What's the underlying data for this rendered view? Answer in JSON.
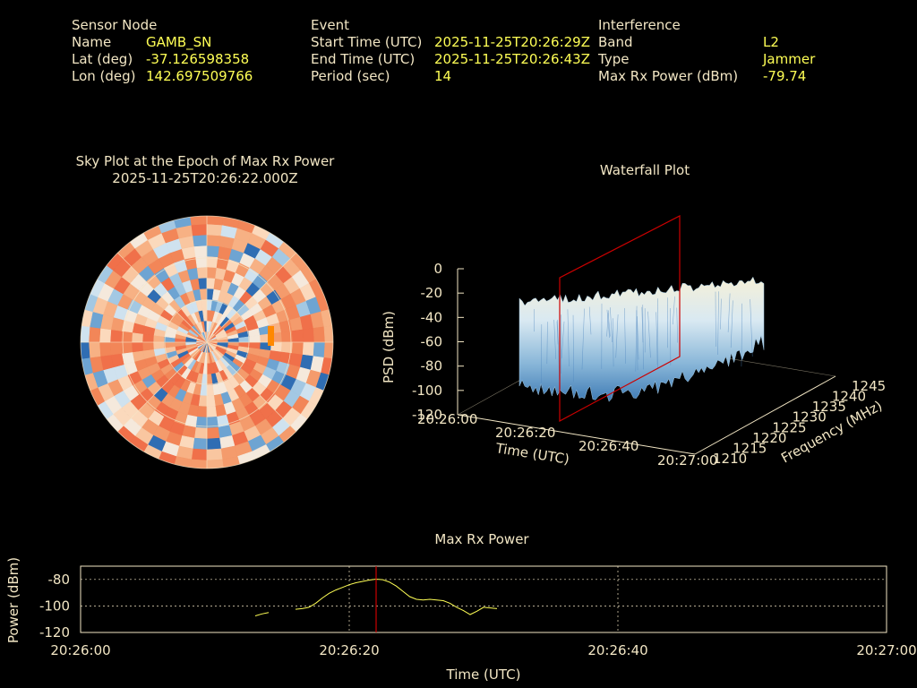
{
  "info": {
    "sensor": {
      "heading": "Sensor Node",
      "rows": [
        {
          "label": "Name",
          "value": "GAMB_SN"
        },
        {
          "label": "Lat (deg)",
          "value": "-37.126598358"
        },
        {
          "label": "Lon (deg)",
          "value": "142.697509766"
        }
      ]
    },
    "event": {
      "heading": "Event",
      "rows": [
        {
          "label": "Start Time (UTC)",
          "value": "2025-11-25T20:26:29Z"
        },
        {
          "label": "End Time (UTC)",
          "value": "2025-11-25T20:26:43Z"
        },
        {
          "label": "Period (sec)",
          "value": "14"
        }
      ]
    },
    "interference": {
      "heading": "Interference",
      "rows": [
        {
          "label": "Band",
          "value": "L2"
        },
        {
          "label": "Type",
          "value": "Jammer"
        },
        {
          "label": "Max Rx Power (dBm)",
          "value": "-79.74"
        }
      ]
    }
  },
  "sky_plot": {
    "title": "Sky Plot at the Epoch of Max Rx Power",
    "subtitle": "2025-11-25T20:26:22.000Z",
    "highlight_color": "#ff8800"
  },
  "chart_data": [
    {
      "type": "area",
      "title": "Waterfall Plot",
      "xlabel": "Time (UTC)",
      "ylabel": "Frequency (MHz)",
      "zlabel": "PSD (dBm)",
      "x_ticks": [
        "20:26:00",
        "20:26:20",
        "20:26:40",
        "20:27:00"
      ],
      "y_ticks": [
        "1210",
        "1215",
        "1220",
        "1225",
        "1230",
        "1235",
        "1240",
        "1245"
      ],
      "z_ticks": [
        "0",
        "-20",
        "-40",
        "-60",
        "-80",
        "-100",
        "-120"
      ],
      "zlim": [
        -120,
        0
      ],
      "marker_time": "20:26:22",
      "marker_color": "#cc0000"
    },
    {
      "type": "line",
      "title": "Max Rx Power",
      "xlabel": "Time (UTC)",
      "ylabel": "Power (dBm)",
      "x_ticks": [
        "20:26:00",
        "20:26:20",
        "20:26:40",
        "20:27:00"
      ],
      "y_ticks": [
        "-80",
        "-100",
        "-120"
      ],
      "xlim_sec": [
        0,
        60
      ],
      "ylim": [
        -120,
        -70
      ],
      "line_color": "#ffff55",
      "marker_sec": 22,
      "marker_color": "#cc0000",
      "series": [
        {
          "x": [
            13.0,
            13.5,
            14.0,
            14.5,
            15.0,
            15.5,
            16.0,
            16.5,
            17.0,
            17.5,
            18.0,
            18.5,
            19.0,
            19.5,
            20.0,
            20.5,
            21.0,
            21.5,
            22.0,
            22.5,
            23.0,
            23.5,
            24.0,
            24.5,
            25.0,
            25.5,
            26.0,
            26.5,
            27.0,
            27.5,
            28.0,
            28.5,
            29.0,
            29.5,
            30.0,
            30.5,
            31.0,
            31.5,
            32.0,
            32.5,
            33.0,
            33.5,
            34.0,
            34.5
          ],
          "y": [
            -107.5,
            -106,
            -105,
            null,
            null,
            null,
            -102.5,
            -102,
            -101,
            -98,
            -94,
            -90.5,
            -88,
            -86,
            -84,
            -82.5,
            -81.5,
            -80.5,
            -79.8,
            -80.2,
            -82,
            -85,
            -89,
            -93,
            -95,
            -95.5,
            -95,
            -95.5,
            -96,
            -98,
            -101,
            -103.5,
            -106.5,
            -104,
            -101,
            -101.5,
            -102,
            null,
            null,
            null,
            null,
            null,
            null,
            -107.5
          ]
        }
      ]
    }
  ]
}
